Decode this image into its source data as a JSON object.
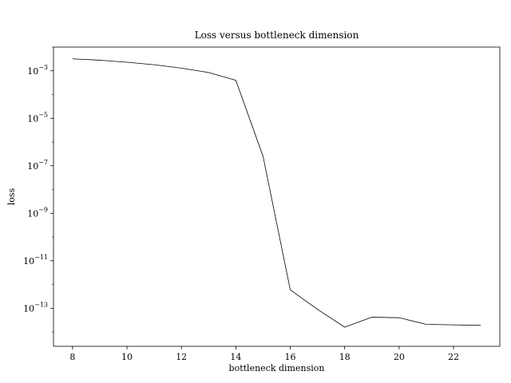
{
  "chart_data": {
    "type": "line",
    "title": "Loss versus bottleneck dimension",
    "xlabel": "bottleneck dimension",
    "ylabel": "loss",
    "xlim": [
      7.3,
      23.7
    ],
    "ylim": [
      2.5e-15,
      0.01
    ],
    "y_scale": "log",
    "grid": false,
    "x_ticks": [
      {
        "value": 8,
        "label": "8"
      },
      {
        "value": 10,
        "label": "10"
      },
      {
        "value": 12,
        "label": "12"
      },
      {
        "value": 14,
        "label": "14"
      },
      {
        "value": 16,
        "label": "16"
      },
      {
        "value": 18,
        "label": "18"
      },
      {
        "value": 20,
        "label": "20"
      },
      {
        "value": 22,
        "label": "22"
      }
    ],
    "y_ticks": [
      {
        "value": 0.001,
        "base": "10",
        "exp": "−3"
      },
      {
        "value": 1e-05,
        "base": "10",
        "exp": "−5"
      },
      {
        "value": 1e-07,
        "base": "10",
        "exp": "−7"
      },
      {
        "value": 1e-09,
        "base": "10",
        "exp": "−9"
      },
      {
        "value": 1e-11,
        "base": "10",
        "exp": "−11"
      },
      {
        "value": 1e-13,
        "base": "10",
        "exp": "−13"
      }
    ],
    "series": [
      {
        "color": "#000000",
        "x": [
          8,
          9,
          10,
          11,
          12,
          13,
          14,
          15,
          16,
          17,
          18,
          19,
          20,
          21,
          22,
          23
        ],
        "y": [
          0.0032,
          0.0028,
          0.0023,
          0.0018,
          0.0013,
          0.00085,
          0.0004,
          2.5e-07,
          6e-13,
          9e-14,
          1.6e-14,
          4.2e-14,
          4e-14,
          2.1e-14,
          2e-14,
          1.9e-14
        ]
      }
    ]
  }
}
